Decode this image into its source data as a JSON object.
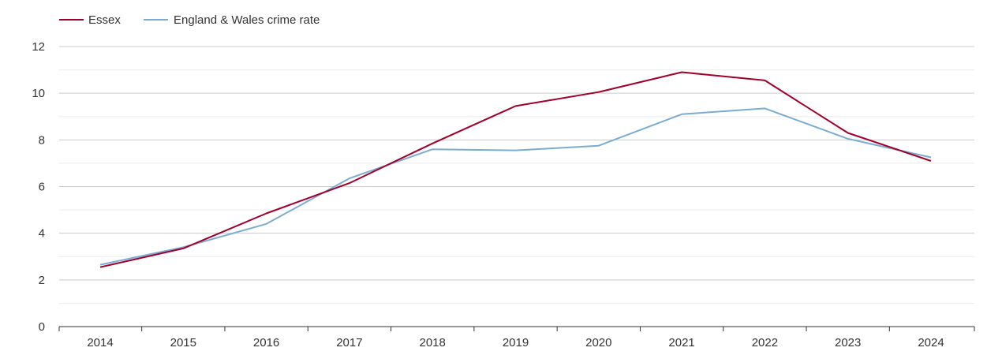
{
  "chart_data": {
    "type": "line",
    "title": "",
    "xlabel": "",
    "ylabel": "",
    "x": [
      "2014",
      "2015",
      "2016",
      "2017",
      "2018",
      "2019",
      "2020",
      "2021",
      "2022",
      "2023",
      "2024"
    ],
    "ylim": [
      0,
      12
    ],
    "yticks": [
      "0",
      "2",
      "4",
      "6",
      "8",
      "10",
      "12"
    ],
    "grid": true,
    "legend_position": "top-left",
    "series": [
      {
        "name": "Essex",
        "color": "#a0002a",
        "values": [
          2.55,
          3.35,
          4.85,
          6.15,
          7.85,
          9.45,
          10.05,
          10.9,
          10.55,
          8.3,
          7.1
        ]
      },
      {
        "name": "England & Wales crime rate",
        "color": "#7aadd1",
        "values": [
          2.65,
          3.4,
          4.4,
          6.35,
          7.6,
          7.55,
          7.75,
          9.1,
          9.35,
          8.05,
          7.25
        ]
      }
    ]
  }
}
